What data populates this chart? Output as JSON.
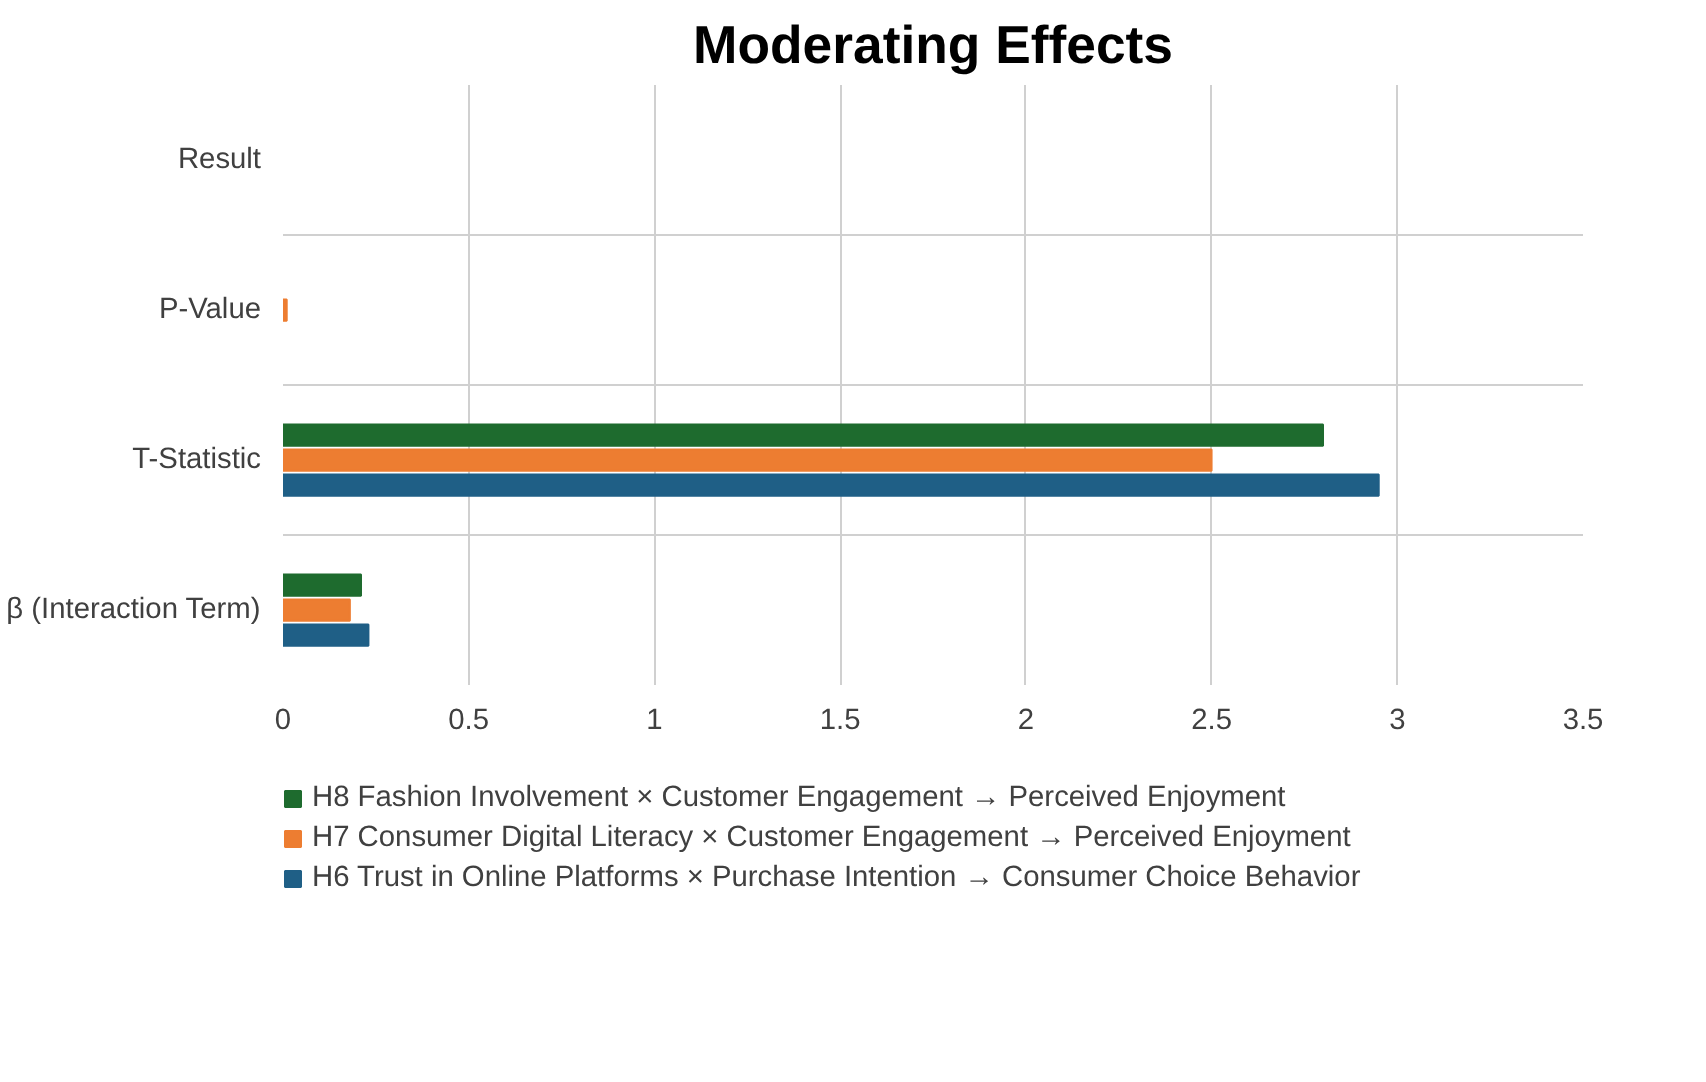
{
  "chart_data": {
    "type": "bar",
    "orientation": "horizontal",
    "title": "Moderating Effects",
    "categories": [
      "Result",
      "P-Value",
      "T-Statistic",
      "β (Interaction Term)"
    ],
    "series": [
      {
        "name": "H8 Fashion Involvement × Customer Engagement → Perceived Enjoyment",
        "color": "#1e6b2e",
        "values": [
          null,
          null,
          2.8,
          0.21
        ]
      },
      {
        "name": "H7 Consumer Digital Literacy × Customer Engagement → Perceived Enjoyment",
        "color": "#ed7d31",
        "values": [
          null,
          0.01,
          2.5,
          0.18
        ]
      },
      {
        "name": "H6 Trust in Online Platforms × Purchase Intention → Consumer Choice Behavior",
        "color": "#1f5f86",
        "values": [
          null,
          null,
          2.95,
          0.23
        ]
      }
    ],
    "xlim": [
      0,
      3.5
    ],
    "xticks": [
      0,
      0.5,
      1,
      1.5,
      2,
      2.5,
      3,
      3.5
    ],
    "grid": true,
    "legend": "bottom"
  }
}
